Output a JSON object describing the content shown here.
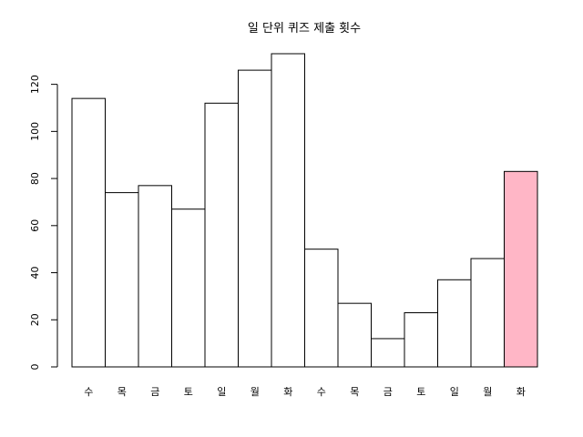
{
  "chart_data": {
    "type": "bar",
    "title": "일 단위 퀴즈 제출 횟수",
    "xlabel": "",
    "ylabel": "",
    "categories": [
      "수",
      "목",
      "금",
      "토",
      "일",
      "월",
      "화",
      "수",
      "목",
      "금",
      "토",
      "일",
      "월",
      "화"
    ],
    "values": [
      114,
      74,
      77,
      67,
      112,
      126,
      133,
      50,
      27,
      12,
      23,
      37,
      46,
      83
    ],
    "ylim": [
      0,
      140
    ],
    "yticks": [
      0,
      20,
      40,
      60,
      80,
      100,
      120
    ],
    "grid": false,
    "legend": "none",
    "bar_color": "#ffffff",
    "highlight_index": 13,
    "highlight_color": "#ffb6c6"
  }
}
